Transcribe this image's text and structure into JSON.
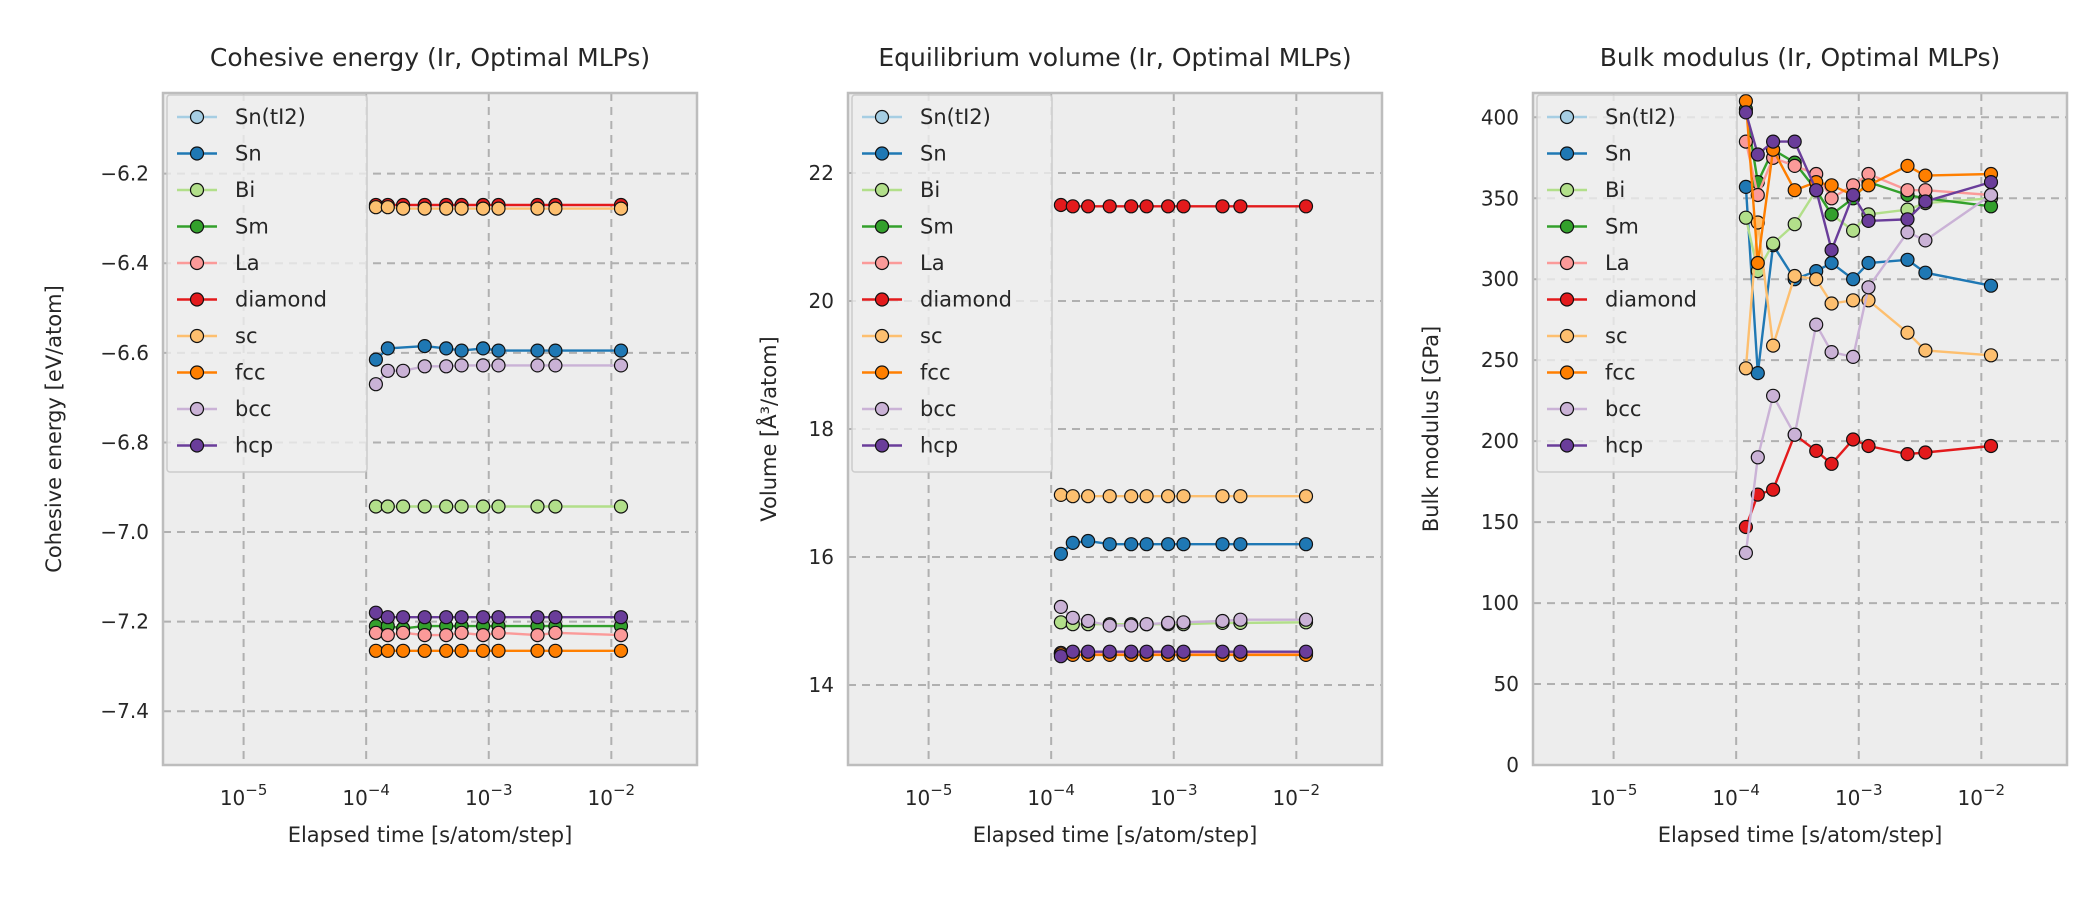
{
  "chart_data": [
    {
      "type": "line",
      "title": "Cohesive energy (Ir, Optimal MLPs)",
      "xlabel": "Elapsed time [s/atom/step]",
      "ylabel": "Cohesive energy [eV/atom]",
      "xscale": "log",
      "xlim": [
        2.2e-06,
        0.05
      ],
      "ylim": [
        -7.52,
        -6.02
      ],
      "yticks": [
        -7.4,
        -7.2,
        -7.0,
        -6.8,
        -6.6,
        -6.4,
        -6.2
      ],
      "yticklabels": [
        "−7.4",
        "−7.2",
        "−7.0",
        "−6.8",
        "−6.6",
        "−6.4",
        "−6.2"
      ],
      "xticklabels": [
        "10−5",
        "10−4",
        "10−3",
        "10−2"
      ],
      "grid": true,
      "legend": "upper-left",
      "series": [
        {
          "name": "Sn(tI2)",
          "color": "#a6cee3",
          "x": [],
          "y": []
        },
        {
          "name": "Sn",
          "color": "#1f78b4",
          "x": [
            0.00012,
            0.00015,
            0.0003,
            0.00045,
            0.0006,
            0.0009,
            0.0012,
            0.0025,
            0.0035,
            0.012
          ],
          "y": [
            -6.615,
            -6.59,
            -6.585,
            -6.59,
            -6.595,
            -6.59,
            -6.595,
            -6.595,
            -6.595,
            -6.595
          ]
        },
        {
          "name": "Bi",
          "color": "#b2df8a",
          "x": [
            0.00012,
            0.00015,
            0.0002,
            0.0003,
            0.00045,
            0.0006,
            0.0009,
            0.0012,
            0.0025,
            0.0035,
            0.012
          ],
          "y": [
            -6.943,
            -6.943,
            -6.943,
            -6.943,
            -6.943,
            -6.943,
            -6.943,
            -6.943,
            -6.943,
            -6.943,
            -6.943
          ]
        },
        {
          "name": "Sm",
          "color": "#33a02c",
          "x": [
            0.00012,
            0.00015,
            0.0002,
            0.0003,
            0.00045,
            0.0006,
            0.0009,
            0.0012,
            0.0025,
            0.0035,
            0.012
          ],
          "y": [
            -7.21,
            -7.21,
            -7.215,
            -7.21,
            -7.21,
            -7.21,
            -7.21,
            -7.21,
            -7.21,
            -7.21,
            -7.21
          ]
        },
        {
          "name": "La",
          "color": "#fb9a99",
          "x": [
            0.00012,
            0.00015,
            0.0002,
            0.0003,
            0.00045,
            0.0006,
            0.0009,
            0.0012,
            0.0025,
            0.0035,
            0.012
          ],
          "y": [
            -7.225,
            -7.23,
            -7.225,
            -7.23,
            -7.23,
            -7.225,
            -7.23,
            -7.225,
            -7.23,
            -7.225,
            -7.23
          ]
        },
        {
          "name": "diamond",
          "color": "#e31a1c",
          "x": [
            0.00012,
            0.00015,
            0.0002,
            0.0003,
            0.00045,
            0.0006,
            0.0009,
            0.0012,
            0.0025,
            0.0035,
            0.012
          ],
          "y": [
            -6.27,
            -6.27,
            -6.27,
            -6.27,
            -6.27,
            -6.27,
            -6.27,
            -6.27,
            -6.27,
            -6.27,
            -6.27
          ]
        },
        {
          "name": "sc",
          "color": "#fdbf6f",
          "x": [
            0.00012,
            0.00015,
            0.0002,
            0.0003,
            0.00045,
            0.0006,
            0.0009,
            0.0012,
            0.0025,
            0.0035,
            0.012
          ],
          "y": [
            -6.275,
            -6.275,
            -6.278,
            -6.278,
            -6.278,
            -6.278,
            -6.278,
            -6.278,
            -6.278,
            -6.278,
            -6.278
          ]
        },
        {
          "name": "fcc",
          "color": "#ff7f00",
          "x": [
            0.00012,
            0.00015,
            0.0002,
            0.0003,
            0.00045,
            0.0006,
            0.0009,
            0.0012,
            0.0025,
            0.0035,
            0.012
          ],
          "y": [
            -7.265,
            -7.265,
            -7.265,
            -7.265,
            -7.265,
            -7.265,
            -7.265,
            -7.265,
            -7.265,
            -7.265,
            -7.265
          ]
        },
        {
          "name": "bcc",
          "color": "#cab2d6",
          "x": [
            0.00012,
            0.00015,
            0.0002,
            0.0003,
            0.00045,
            0.0006,
            0.0009,
            0.0012,
            0.0025,
            0.0035,
            0.012
          ],
          "y": [
            -6.67,
            -6.64,
            -6.64,
            -6.63,
            -6.63,
            -6.628,
            -6.628,
            -6.628,
            -6.628,
            -6.628,
            -6.628
          ]
        },
        {
          "name": "hcp",
          "color": "#6a3d9a",
          "x": [
            0.00012,
            0.00015,
            0.0002,
            0.0003,
            0.00045,
            0.0006,
            0.0009,
            0.0012,
            0.0025,
            0.0035,
            0.012
          ],
          "y": [
            -7.18,
            -7.19,
            -7.19,
            -7.19,
            -7.19,
            -7.19,
            -7.19,
            -7.19,
            -7.19,
            -7.19,
            -7.19
          ]
        }
      ]
    },
    {
      "type": "line",
      "title": "Equilibrium volume (Ir, Optimal MLPs)",
      "xlabel": "Elapsed time [s/atom/step]",
      "ylabel": "Volume [Å³/atom]",
      "xscale": "log",
      "xlim": [
        2.2e-06,
        0.05
      ],
      "ylim": [
        12.75,
        23.25
      ],
      "yticks": [
        14,
        16,
        18,
        20,
        22
      ],
      "yticklabels": [
        "14",
        "16",
        "18",
        "20",
        "22"
      ],
      "xticklabels": [
        "10−5",
        "10−4",
        "10−3",
        "10−2"
      ],
      "grid": true,
      "legend": "upper-left",
      "series": [
        {
          "name": "Sn(tI2)",
          "color": "#a6cee3",
          "x": [],
          "y": []
        },
        {
          "name": "Sn",
          "color": "#1f78b4",
          "x": [
            0.00012,
            0.00015,
            0.0002,
            0.0003,
            0.00045,
            0.0006,
            0.0009,
            0.0012,
            0.0025,
            0.0035,
            0.012
          ],
          "y": [
            16.05,
            16.22,
            16.25,
            16.2,
            16.2,
            16.2,
            16.2,
            16.2,
            16.2,
            16.2,
            16.2
          ]
        },
        {
          "name": "Bi",
          "color": "#b2df8a",
          "x": [
            0.00012,
            0.00015,
            0.0002,
            0.0003,
            0.00045,
            0.0006,
            0.0009,
            0.0012,
            0.0025,
            0.0035,
            0.012
          ],
          "y": [
            14.98,
            14.95,
            14.95,
            14.95,
            14.95,
            14.95,
            14.95,
            14.95,
            14.97,
            14.97,
            14.98
          ]
        },
        {
          "name": "Sm",
          "color": "#33a02c",
          "x": [
            0.00012,
            0.00015,
            0.0002,
            0.0003,
            0.00045,
            0.0006,
            0.0009,
            0.0012,
            0.0025,
            0.0035,
            0.012
          ],
          "y": [
            14.5,
            14.5,
            14.5,
            14.5,
            14.5,
            14.5,
            14.5,
            14.5,
            14.5,
            14.5,
            14.5
          ]
        },
        {
          "name": "La",
          "color": "#fb9a99",
          "x": [
            0.00012,
            0.00015,
            0.0002,
            0.0003,
            0.00045,
            0.0006,
            0.0009,
            0.0012,
            0.0025,
            0.0035,
            0.012
          ],
          "y": [
            14.5,
            14.5,
            14.5,
            14.5,
            14.5,
            14.5,
            14.5,
            14.5,
            14.5,
            14.5,
            14.5
          ]
        },
        {
          "name": "diamond",
          "color": "#e31a1c",
          "x": [
            0.00012,
            0.00015,
            0.0002,
            0.0003,
            0.00045,
            0.0006,
            0.0009,
            0.0012,
            0.0025,
            0.0035,
            0.012
          ],
          "y": [
            21.5,
            21.48,
            21.48,
            21.48,
            21.48,
            21.48,
            21.48,
            21.48,
            21.48,
            21.48,
            21.48
          ]
        },
        {
          "name": "sc",
          "color": "#fdbf6f",
          "x": [
            0.00012,
            0.00015,
            0.0002,
            0.0003,
            0.00045,
            0.0006,
            0.0009,
            0.0012,
            0.0025,
            0.0035,
            0.012
          ],
          "y": [
            16.97,
            16.95,
            16.95,
            16.95,
            16.95,
            16.95,
            16.95,
            16.95,
            16.95,
            16.95,
            16.95
          ]
        },
        {
          "name": "fcc",
          "color": "#ff7f00",
          "x": [
            0.00012,
            0.00015,
            0.0002,
            0.0003,
            0.00045,
            0.0006,
            0.0009,
            0.0012,
            0.0025,
            0.0035,
            0.012
          ],
          "y": [
            14.48,
            14.47,
            14.47,
            14.47,
            14.47,
            14.47,
            14.47,
            14.47,
            14.47,
            14.47,
            14.47
          ]
        },
        {
          "name": "bcc",
          "color": "#cab2d6",
          "x": [
            0.00012,
            0.00015,
            0.0002,
            0.0003,
            0.00045,
            0.0006,
            0.0009,
            0.0012,
            0.0025,
            0.0035,
            0.012
          ],
          "y": [
            15.22,
            15.05,
            15.0,
            14.93,
            14.93,
            14.95,
            14.97,
            14.98,
            15.0,
            15.02,
            15.02
          ]
        },
        {
          "name": "hcp",
          "color": "#6a3d9a",
          "x": [
            0.00012,
            0.00015,
            0.0002,
            0.0003,
            0.00045,
            0.0006,
            0.0009,
            0.0012,
            0.0025,
            0.0035,
            0.012
          ],
          "y": [
            14.45,
            14.52,
            14.52,
            14.52,
            14.52,
            14.52,
            14.52,
            14.52,
            14.52,
            14.52,
            14.52
          ]
        }
      ]
    },
    {
      "type": "line",
      "title": "Bulk modulus (Ir, Optimal MLPs)",
      "xlabel": "Elapsed time [s/atom/step]",
      "ylabel": "Bulk modulus [GPa]",
      "xscale": "log",
      "xlim": [
        2.2e-06,
        0.05
      ],
      "ylim": [
        0,
        415
      ],
      "yticks": [
        0,
        50,
        100,
        150,
        200,
        250,
        300,
        350,
        400
      ],
      "yticklabels": [
        "0",
        "50",
        "100",
        "150",
        "200",
        "250",
        "300",
        "350",
        "400"
      ],
      "xticklabels": [
        "10−5",
        "10−4",
        "10−3",
        "10−2"
      ],
      "grid": true,
      "legend": "upper-left",
      "series": [
        {
          "name": "Sn(tI2)",
          "color": "#a6cee3",
          "x": [],
          "y": []
        },
        {
          "name": "Sn",
          "color": "#1f78b4",
          "x": [
            0.00012,
            0.00015,
            0.0002,
            0.0003,
            0.00045,
            0.0006,
            0.0009,
            0.0012,
            0.0025,
            0.0035,
            0.012
          ],
          "y": [
            357,
            242,
            321,
            300,
            305,
            310,
            300,
            310,
            312,
            304,
            296
          ]
        },
        {
          "name": "Bi",
          "color": "#b2df8a",
          "x": [
            0.00012,
            0.00015,
            0.0002,
            0.0003,
            0.00045,
            0.0006,
            0.0009,
            0.0012,
            0.0025,
            0.0035,
            0.012
          ],
          "y": [
            338,
            305,
            322,
            334,
            355,
            340,
            330,
            340,
            343,
            347,
            350
          ]
        },
        {
          "name": "Sm",
          "color": "#33a02c",
          "x": [
            0.00012,
            0.00015,
            0.0002,
            0.0003,
            0.00045,
            0.0006,
            0.0009,
            0.0012,
            0.0025,
            0.0035,
            0.012
          ],
          "y": [
            405,
            360,
            380,
            372,
            355,
            340,
            350,
            360,
            352,
            350,
            345
          ]
        },
        {
          "name": "La",
          "color": "#fb9a99",
          "x": [
            0.00012,
            0.00015,
            0.0002,
            0.0003,
            0.00045,
            0.0006,
            0.0009,
            0.0012,
            0.0025,
            0.0035,
            0.012
          ],
          "y": [
            385,
            352,
            375,
            370,
            365,
            350,
            358,
            365,
            355,
            355,
            352
          ]
        },
        {
          "name": "diamond",
          "color": "#e31a1c",
          "x": [
            0.00012,
            0.00015,
            0.0002,
            0.0003,
            0.00045,
            0.0006,
            0.0009,
            0.0012,
            0.0025,
            0.0035,
            0.012
          ],
          "y": [
            147,
            167,
            170,
            204,
            194,
            186,
            201,
            197,
            192,
            193,
            197
          ]
        },
        {
          "name": "sc",
          "color": "#fdbf6f",
          "x": [
            0.00012,
            0.00015,
            0.0002,
            0.0003,
            0.00045,
            0.0006,
            0.0009,
            0.0012,
            0.0025,
            0.0035,
            0.012
          ],
          "y": [
            245,
            335,
            259,
            302,
            300,
            285,
            287,
            287,
            267,
            256,
            253
          ]
        },
        {
          "name": "fcc",
          "color": "#ff7f00",
          "x": [
            0.00012,
            0.00015,
            0.0002,
            0.0003,
            0.00045,
            0.0006,
            0.0009,
            0.0012,
            0.0025,
            0.0035,
            0.012
          ],
          "y": [
            410,
            310,
            380,
            355,
            360,
            358,
            352,
            358,
            370,
            364,
            365
          ]
        },
        {
          "name": "bcc",
          "color": "#cab2d6",
          "x": [
            0.00012,
            0.00015,
            0.0002,
            0.0003,
            0.00045,
            0.0006,
            0.0009,
            0.0012,
            0.0025,
            0.0035,
            0.012
          ],
          "y": [
            131,
            190,
            228,
            204,
            272,
            255,
            252,
            295,
            329,
            324,
            352
          ]
        },
        {
          "name": "hcp",
          "color": "#6a3d9a",
          "x": [
            0.00012,
            0.00015,
            0.0002,
            0.0003,
            0.00045,
            0.0006,
            0.0009,
            0.0012,
            0.0025,
            0.0035,
            0.012
          ],
          "y": [
            403,
            377,
            385,
            385,
            355,
            318,
            352,
            336,
            337,
            348,
            360
          ]
        }
      ]
    }
  ]
}
